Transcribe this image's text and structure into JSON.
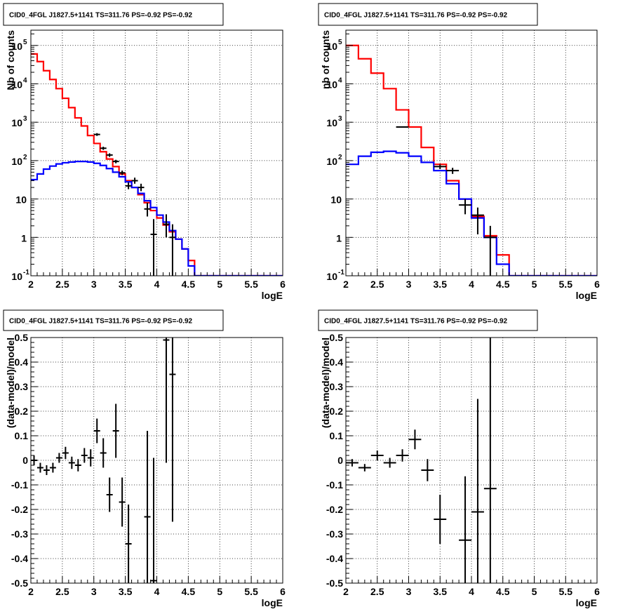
{
  "chart_data": [
    {
      "type": "histogram-step",
      "title": "CID0_4FGL J1827.5+1141 TS=311.76 PS=-0.92 PS=-0.92",
      "xlabel": "logE",
      "ylabel": "Nb of counts",
      "xlim": [
        2,
        6
      ],
      "ylim": [
        0.1,
        250000
      ],
      "yscale": "log",
      "grid": true,
      "x_ticks": [
        2,
        2.5,
        3,
        3.5,
        4,
        4.5,
        5,
        5.5,
        6
      ],
      "x_tick_labels": [
        "2",
        "2.5",
        "3",
        "3.5",
        "4",
        "4.5",
        "5",
        "5.5",
        "6"
      ],
      "y_ticks": [
        0.1,
        1,
        10,
        100,
        1000,
        10000,
        100000
      ],
      "y_tick_labels": [
        [
          "10",
          "-1"
        ],
        [
          "1",
          ""
        ],
        [
          "10",
          ""
        ],
        [
          "10",
          "2"
        ],
        [
          "10",
          "3"
        ],
        [
          "10",
          "4"
        ],
        [
          "10",
          "5"
        ]
      ],
      "bin_edges": [
        2.0,
        2.1,
        2.2,
        2.3,
        2.4,
        2.5,
        2.6,
        2.7,
        2.8,
        2.9,
        3.0,
        3.1,
        3.2,
        3.3,
        3.4,
        3.5,
        3.6,
        3.7,
        3.8,
        3.9,
        4.0,
        4.1,
        4.2,
        4.3,
        4.4,
        4.5,
        4.6,
        4.7,
        4.8,
        4.9,
        5.0,
        5.1,
        5.2,
        5.3,
        5.4,
        5.5,
        5.6,
        5.7,
        5.8,
        5.9,
        6.0
      ],
      "series": [
        {
          "color": "#ff0000",
          "style": "step",
          "values": [
            60000,
            38000,
            22000,
            13000,
            7500,
            4200,
            2400,
            1300,
            800,
            450,
            280,
            170,
            110,
            70,
            45,
            30,
            20,
            13,
            8,
            5,
            3.2,
            2.1,
            1.4,
            0.9,
            0.5,
            0.25,
            0.09,
            0.09,
            0.09,
            0.09,
            0.09,
            0.09,
            0.09,
            0.09,
            0.09,
            0.09,
            0.09,
            0.09,
            0.09,
            0.09
          ]
        },
        {
          "color": "#0000ff",
          "style": "step",
          "values": [
            32,
            45,
            60,
            72,
            82,
            88,
            92,
            95,
            95,
            92,
            85,
            75,
            62,
            50,
            38,
            28,
            20,
            14,
            9,
            6,
            3.8,
            2.5,
            1.5,
            0.9,
            0.5,
            0.18,
            0.1,
            0.1,
            0.1,
            0.1,
            0.1,
            0.1,
            0.1,
            0.1,
            0.1,
            0.1,
            0.1,
            0.1,
            0.1,
            0.1
          ]
        },
        {
          "color": "#000000",
          "style": "points",
          "x": [
            3.05,
            3.15,
            3.25,
            3.35,
            3.45,
            3.55,
            3.65,
            3.75,
            3.85,
            3.95,
            4.15,
            4.25
          ],
          "y": [
            480,
            210,
            140,
            95,
            48,
            22,
            30,
            20,
            5.5,
            1.2,
            2.2,
            1.0
          ],
          "y_low": [
            440,
            190,
            125,
            85,
            42,
            18,
            25,
            16,
            3.5,
            0.1,
            1.0,
            0.1
          ],
          "y_high": [
            520,
            230,
            155,
            105,
            55,
            27,
            36,
            25,
            8,
            3,
            4,
            2.2
          ]
        }
      ]
    },
    {
      "type": "histogram-step",
      "title": "CID0_4FGL J1827.5+1141 TS=311.76 PS=-0.92 PS=-0.92",
      "xlabel": "logE",
      "ylabel": "nb of counts",
      "xlim": [
        2,
        6
      ],
      "ylim": [
        0.1,
        250000
      ],
      "yscale": "log",
      "grid": true,
      "x_ticks": [
        2,
        2.5,
        3,
        3.5,
        4,
        4.5,
        5,
        5.5,
        6
      ],
      "x_tick_labels": [
        "2",
        "2.5",
        "3",
        "3.5",
        "4",
        "4.5",
        "5",
        "5.5",
        "6"
      ],
      "y_ticks": [
        0.1,
        1,
        10,
        100,
        1000,
        10000,
        100000
      ],
      "y_tick_labels": [
        [
          "10",
          "-1"
        ],
        [
          "1",
          ""
        ],
        [
          "10",
          ""
        ],
        [
          "10",
          "2"
        ],
        [
          "10",
          "3"
        ],
        [
          "10",
          "4"
        ],
        [
          "10",
          "5"
        ]
      ],
      "bin_edges": [
        2.0,
        2.2,
        2.4,
        2.6,
        2.8,
        3.0,
        3.2,
        3.4,
        3.6,
        3.8,
        4.0,
        4.2,
        4.4,
        4.6,
        4.8,
        5.0,
        5.2,
        5.4,
        5.6,
        5.8,
        6.0
      ],
      "series": [
        {
          "color": "#ff0000",
          "style": "step",
          "values": [
            100000,
            45000,
            19000,
            7500,
            2100,
            750,
            220,
            80,
            30,
            10,
            3.5,
            1.1,
            0.35,
            0.09,
            0.09,
            0.09,
            0.09,
            0.09,
            0.09,
            0.09
          ]
        },
        {
          "color": "#0000ff",
          "style": "step",
          "values": [
            80,
            130,
            165,
            175,
            160,
            130,
            90,
            55,
            25,
            10,
            3.2,
            1.0,
            0.2,
            0.1,
            0.1,
            0.1,
            0.1,
            0.1,
            0.1,
            0.1
          ]
        },
        {
          "color": "#000000",
          "style": "points",
          "x": [
            2.9,
            3.5,
            3.7,
            3.9,
            4.1,
            4.3
          ],
          "y": [
            750,
            70,
            55,
            7,
            3.8,
            1.0
          ],
          "y_low": [
            720,
            60,
            45,
            4,
            1.2,
            0.1
          ],
          "y_high": [
            780,
            80,
            65,
            10,
            6,
            2
          ]
        }
      ]
    },
    {
      "type": "scatter-errorbars",
      "title": "CID0_4FGL J1827.5+1141 TS=311.76 PS=-0.92 PS=-0.92",
      "xlabel": "logE",
      "ylabel": "(data-model)/model",
      "xlim": [
        2,
        6
      ],
      "ylim": [
        -0.5,
        0.5
      ],
      "grid": true,
      "x_ticks": [
        2,
        2.5,
        3,
        3.5,
        4,
        4.5,
        5,
        5.5,
        6
      ],
      "x_tick_labels": [
        "2",
        "2.5",
        "3",
        "3.5",
        "4",
        "4.5",
        "5",
        "5.5",
        "6"
      ],
      "y_ticks": [
        -0.5,
        -0.4,
        -0.3,
        -0.2,
        -0.1,
        0,
        0.1,
        0.2,
        0.3,
        0.4,
        0.5
      ],
      "y_tick_labels": [
        "-0.5",
        "-0.4",
        "-0.3",
        "-0.2",
        "-0.1",
        "0",
        "0.1",
        "0.2",
        "0.3",
        "0.4",
        "0.5"
      ],
      "x_halfwidth": 0.05,
      "series": [
        {
          "color": "#000000",
          "x": [
            2.05,
            2.15,
            2.25,
            2.35,
            2.45,
            2.55,
            2.65,
            2.75,
            2.85,
            2.95,
            3.05,
            3.15,
            3.25,
            3.35,
            3.45,
            3.55,
            3.85,
            3.95,
            4.15,
            4.25
          ],
          "y": [
            0.0,
            -0.03,
            -0.04,
            -0.03,
            0.01,
            0.03,
            -0.01,
            -0.02,
            0.02,
            0.01,
            0.12,
            0.03,
            -0.14,
            0.12,
            -0.17,
            -0.34,
            -0.23,
            -0.49,
            0.49,
            0.35
          ],
          "err": [
            0.02,
            0.02,
            0.02,
            0.02,
            0.02,
            0.025,
            0.025,
            0.025,
            0.03,
            0.035,
            0.05,
            0.06,
            0.07,
            0.11,
            0.1,
            0.16,
            0.35,
            0.5,
            0.5,
            0.6
          ]
        }
      ]
    },
    {
      "type": "scatter-errorbars",
      "title": "CID0_4FGL J1827.5+1141 TS=311.76 PS=-0.92 PS=-0.92",
      "xlabel": "logE",
      "ylabel": "(data-model)/model",
      "xlim": [
        2,
        6
      ],
      "ylim": [
        -0.5,
        0.5
      ],
      "grid": true,
      "x_ticks": [
        2,
        2.5,
        3,
        3.5,
        4,
        4.5,
        5,
        5.5,
        6
      ],
      "x_tick_labels": [
        "2",
        "2.5",
        "3",
        "3.5",
        "4",
        "4.5",
        "5",
        "5.5",
        "6"
      ],
      "y_ticks": [
        -0.5,
        -0.4,
        -0.3,
        -0.2,
        -0.1,
        0,
        0.1,
        0.2,
        0.3,
        0.4,
        0.5
      ],
      "y_tick_labels": [
        "-0.5",
        "-0.4",
        "-0.3",
        "-0.2",
        "-0.1",
        "0",
        "0.1",
        "0.2",
        "0.3",
        "0.4",
        "0.5"
      ],
      "x_halfwidth": 0.1,
      "series": [
        {
          "color": "#000000",
          "x": [
            2.1,
            2.3,
            2.5,
            2.7,
            2.9,
            3.1,
            3.3,
            3.5,
            3.9,
            4.1,
            4.3
          ],
          "y": [
            -0.01,
            -0.03,
            0.02,
            -0.01,
            0.02,
            0.085,
            -0.04,
            -0.24,
            -0.325,
            -0.21,
            -0.115
          ],
          "err": [
            0.015,
            0.015,
            0.02,
            0.02,
            0.025,
            0.04,
            0.045,
            0.1,
            0.26,
            0.46,
            0.65
          ]
        }
      ]
    }
  ]
}
